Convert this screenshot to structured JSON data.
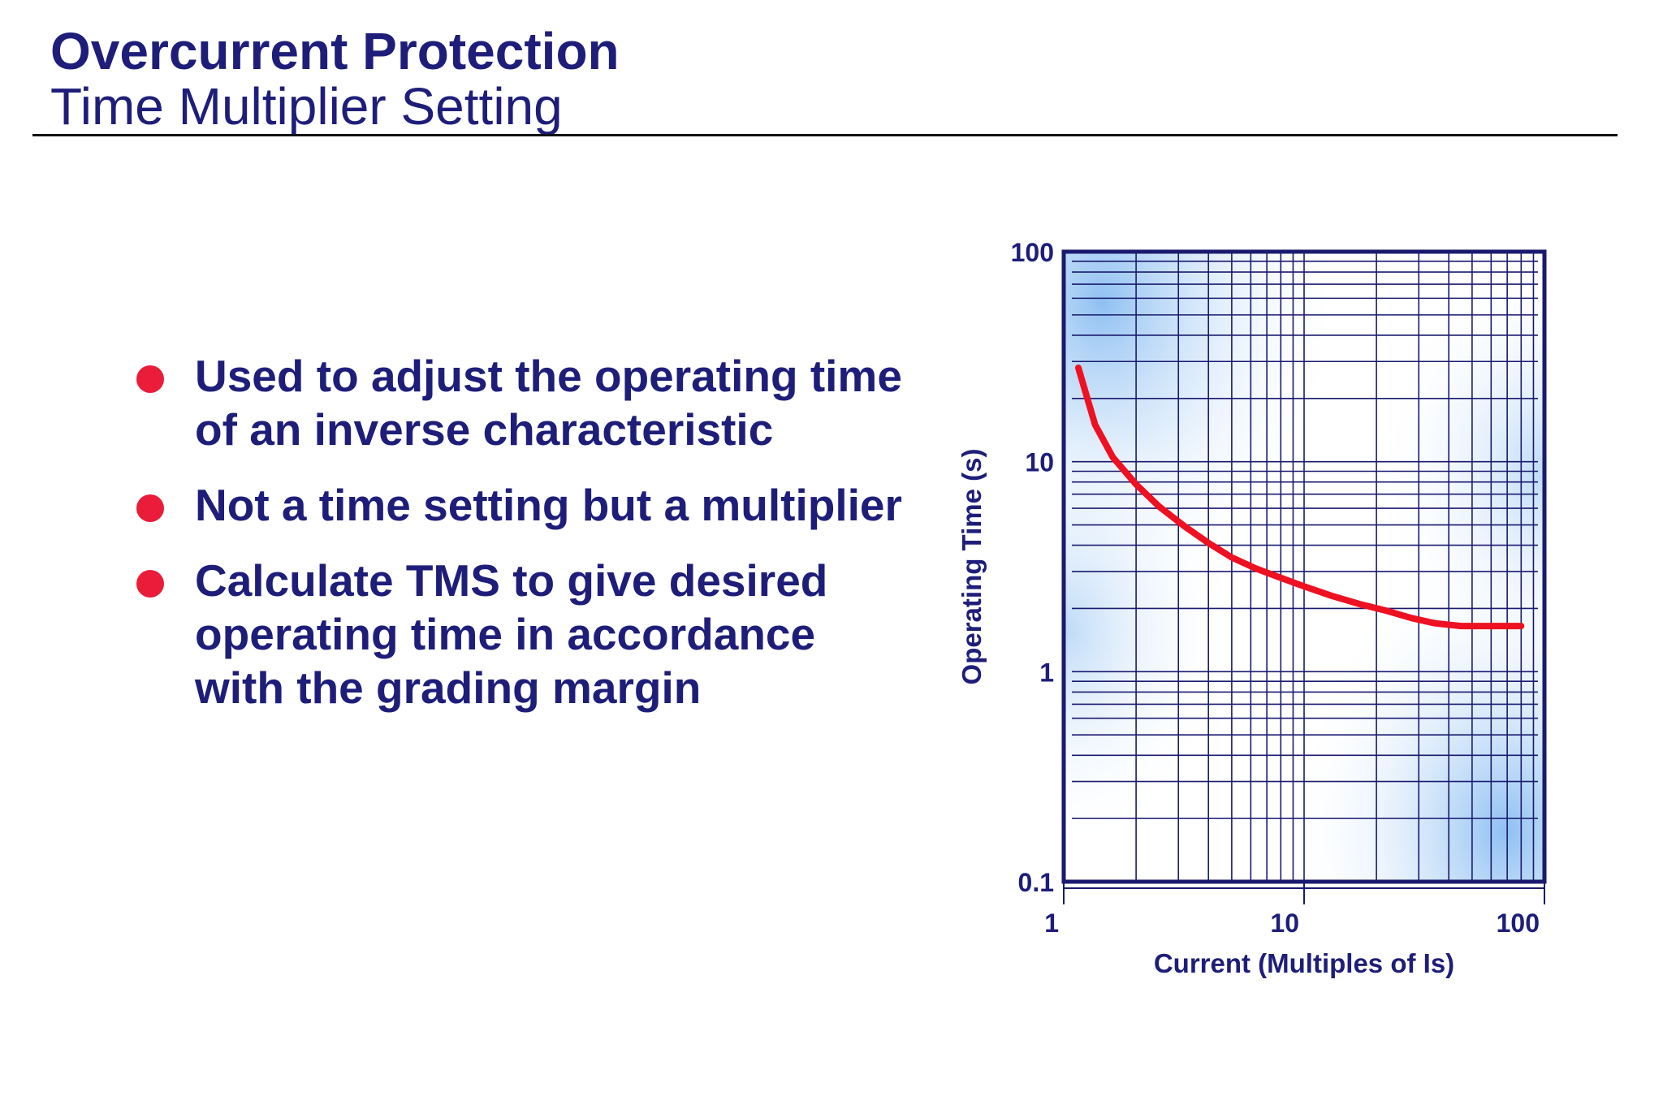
{
  "header": {
    "title": "Overcurrent Protection",
    "subtitle": "Time Multiplier Setting"
  },
  "bullets": [
    "Used to adjust the operating time of an inverse characteristic",
    "Not a time setting but a multiplier",
    "Calculate TMS to give desired operating time in accordance with the grading margin"
  ],
  "colors": {
    "text": "#1e1e7a",
    "bullet": "#ea1c3a",
    "curve": "#ee1122",
    "gridline": "#1a1a6e",
    "plot_gradient": "#a8cdf5"
  },
  "chart_data": {
    "type": "line",
    "xlabel": "Current (Multiples of Is)",
    "ylabel": "Operating Time (s)",
    "x_scale": "log",
    "y_scale": "log",
    "xlim": [
      1,
      100
    ],
    "ylim": [
      0.1,
      100
    ],
    "x_ticks": [
      "1",
      "10",
      "100"
    ],
    "y_ticks": [
      "0.1",
      "1",
      "10",
      "100"
    ],
    "grid": true,
    "series": [
      {
        "x": [
          1.15,
          1.35,
          1.6,
          2.0,
          2.5,
          3.2,
          4.0,
          5.0,
          6.3,
          8.0,
          10,
          13,
          17,
          22,
          28,
          35,
          45,
          55,
          70,
          80
        ],
        "y": [
          28,
          15,
          10.5,
          7.8,
          6.1,
          4.9,
          4.1,
          3.5,
          3.1,
          2.8,
          2.55,
          2.3,
          2.1,
          1.95,
          1.8,
          1.7,
          1.65,
          1.65,
          1.65,
          1.65
        ]
      }
    ]
  }
}
